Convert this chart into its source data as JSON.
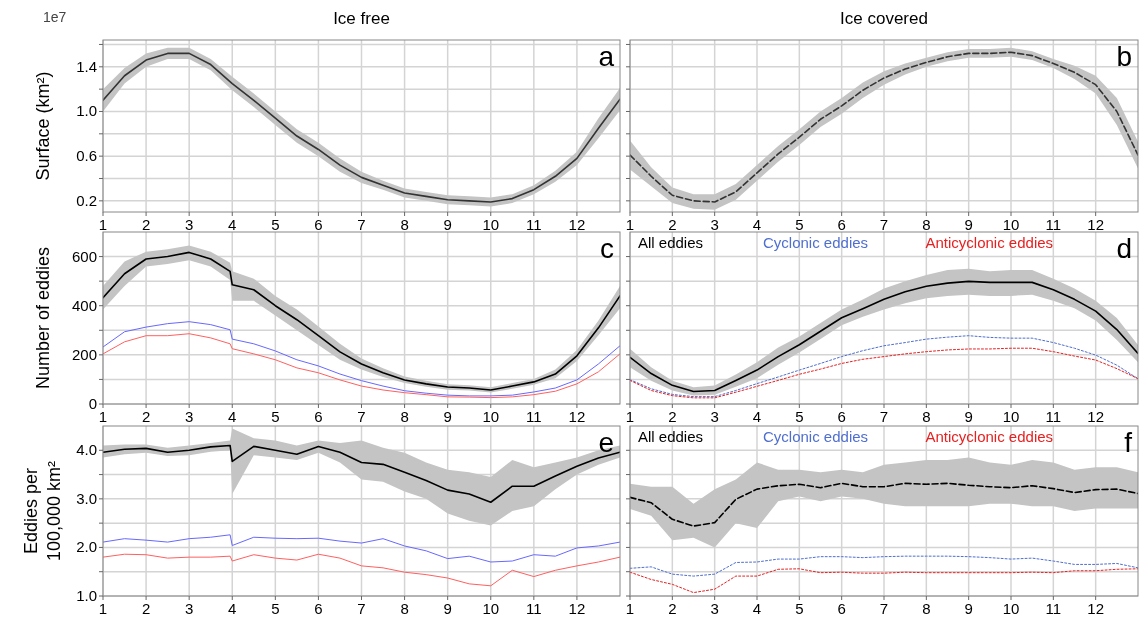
{
  "chart_data": [
    {
      "type": "line",
      "title": "Ice free",
      "ylabel": "Surface (km²)",
      "annotations": [
        "a",
        "1e7"
      ],
      "grid": true,
      "legend": false,
      "x": [
        1,
        1.5,
        2,
        2.5,
        3,
        3.5,
        4,
        4.5,
        5,
        5.5,
        6,
        6.5,
        7,
        7.5,
        8,
        8.5,
        9,
        9.5,
        10,
        10.5,
        11,
        11.5,
        12,
        12.5,
        13
      ],
      "xlim": [
        1,
        13
      ],
      "xticks": [
        1,
        2,
        3,
        4,
        5,
        6,
        7,
        8,
        9,
        10,
        11,
        12
      ],
      "ylim": [
        0.1,
        1.64
      ],
      "yticks": [
        0.2,
        {
          "value": 0.4,
          "label": null
        },
        0.6,
        {
          "value": 0.8,
          "label": null
        },
        {
          "value": 1,
          "label": "1.0"
        },
        {
          "value": 1.2,
          "label": null
        },
        1.4,
        {
          "value": 1.6,
          "label": null
        }
      ],
      "series": [
        {
          "color": "#333333",
          "line_style": "solid",
          "values": [
            1.1,
            1.32,
            1.46,
            1.52,
            1.52,
            1.42,
            1.25,
            1.1,
            0.94,
            0.78,
            0.66,
            0.52,
            0.41,
            0.34,
            0.27,
            0.24,
            0.21,
            0.2,
            0.19,
            0.22,
            0.3,
            0.42,
            0.58,
            0.85,
            1.11
          ],
          "lower": [
            1.0,
            1.25,
            1.4,
            1.47,
            1.47,
            1.37,
            1.19,
            1.04,
            0.88,
            0.72,
            0.6,
            0.46,
            0.36,
            0.3,
            0.23,
            0.2,
            0.17,
            0.16,
            0.15,
            0.18,
            0.26,
            0.37,
            0.52,
            0.76,
            1.01
          ],
          "upper": [
            1.2,
            1.39,
            1.52,
            1.57,
            1.57,
            1.47,
            1.31,
            1.16,
            1.0,
            0.84,
            0.72,
            0.58,
            0.46,
            0.38,
            0.31,
            0.28,
            0.25,
            0.24,
            0.23,
            0.26,
            0.34,
            0.47,
            0.64,
            0.94,
            1.21
          ]
        }
      ]
    },
    {
      "type": "line",
      "title": "Ice covered",
      "annotations": [
        "b"
      ],
      "grid": true,
      "legend": false,
      "tick_labels": "x",
      "x": [
        1,
        1.5,
        2,
        2.5,
        3,
        3.5,
        4,
        4.5,
        5,
        5.5,
        6,
        6.5,
        7,
        7.5,
        8,
        8.5,
        9,
        9.5,
        10,
        10.5,
        11,
        11.5,
        12,
        12.5,
        13
      ],
      "xlim": [
        1,
        13
      ],
      "xticks": [
        1,
        2,
        3,
        4,
        5,
        6,
        7,
        8,
        9,
        10,
        11,
        12
      ],
      "ylim": [
        0.1,
        1.64
      ],
      "yticks": [
        {
          "value": 0.2,
          "label": null
        },
        {
          "value": 0.4,
          "label": null
        },
        {
          "value": 0.6,
          "label": null
        },
        {
          "value": 0.8,
          "label": null
        },
        {
          "value": 1,
          "label": null
        },
        {
          "value": 1.2,
          "label": null
        },
        {
          "value": 1.4,
          "label": null
        },
        {
          "value": 1.6,
          "label": null
        }
      ],
      "series": [
        {
          "color": "#333333",
          "line_style": "dashed",
          "values": [
            0.61,
            0.42,
            0.25,
            0.2,
            0.19,
            0.28,
            0.45,
            0.62,
            0.77,
            0.93,
            1.05,
            1.19,
            1.3,
            1.38,
            1.44,
            1.49,
            1.52,
            1.52,
            1.53,
            1.5,
            1.43,
            1.35,
            1.24,
            1.0,
            0.61
          ],
          "lower": [
            0.48,
            0.33,
            0.18,
            0.13,
            0.12,
            0.21,
            0.38,
            0.55,
            0.7,
            0.86,
            0.98,
            1.12,
            1.24,
            1.33,
            1.4,
            1.45,
            1.48,
            1.48,
            1.49,
            1.46,
            1.39,
            1.29,
            1.16,
            0.88,
            0.49
          ],
          "upper": [
            0.74,
            0.5,
            0.32,
            0.26,
            0.26,
            0.35,
            0.52,
            0.69,
            0.84,
            1.0,
            1.12,
            1.26,
            1.36,
            1.43,
            1.48,
            1.53,
            1.56,
            1.56,
            1.57,
            1.54,
            1.47,
            1.41,
            1.32,
            1.12,
            0.73
          ]
        }
      ]
    },
    {
      "type": "line",
      "ylabel": "Number of eddies",
      "annotations": [
        "c"
      ],
      "grid": true,
      "legend": false,
      "x": [
        1,
        1.5,
        2,
        2.5,
        3,
        3.5,
        3.95,
        4,
        4.5,
        5,
        5.5,
        6,
        6.5,
        7,
        7.5,
        8,
        8.5,
        9,
        9.5,
        10,
        10.5,
        11,
        11.5,
        12,
        12.5,
        13
      ],
      "xlim": [
        1,
        13
      ],
      "xticks": [
        1,
        2,
        3,
        4,
        5,
        6,
        7,
        8,
        9,
        10,
        11,
        12
      ],
      "ylim": [
        0,
        700
      ],
      "yticks": [
        0,
        {
          "value": 100,
          "label": null
        },
        200,
        {
          "value": 300,
          "label": null
        },
        400,
        {
          "value": 500,
          "label": null
        },
        600
      ],
      "series": [
        {
          "color": "#000000",
          "line_style": "solid",
          "values": [
            433,
            530,
            590,
            600,
            617,
            590,
            540,
            485,
            465,
            400,
            343,
            278,
            212,
            163,
            127,
            98,
            82,
            69,
            65,
            57,
            73,
            90,
            122,
            196,
            310,
            440
          ],
          "lower": [
            385,
            480,
            560,
            570,
            585,
            560,
            505,
            420,
            420,
            360,
            300,
            240,
            180,
            140,
            110,
            85,
            70,
            58,
            55,
            47,
            62,
            78,
            105,
            175,
            280,
            390
          ],
          "upper": [
            480,
            580,
            620,
            630,
            645,
            620,
            575,
            540,
            510,
            440,
            385,
            315,
            245,
            185,
            145,
            112,
            95,
            80,
            76,
            68,
            85,
            102,
            140,
            220,
            340,
            480
          ]
        },
        {
          "color": "#6868ff",
          "line_style": "solid",
          "values": [
            232,
            294,
            313,
            327,
            335,
            323,
            302,
            264,
            245,
            216,
            180,
            155,
            122,
            95,
            73,
            54,
            44,
            36,
            33,
            33,
            36,
            49,
            65,
            98,
            163,
            237
          ]
        },
        {
          "color": "#ff6060",
          "line_style": "solid",
          "values": [
            204,
            253,
            278,
            278,
            286,
            269,
            245,
            225,
            204,
            180,
            147,
            127,
            98,
            73,
            57,
            46,
            38,
            29,
            28,
            26,
            29,
            38,
            52,
            82,
            131,
            204
          ]
        }
      ]
    },
    {
      "type": "line",
      "annotations": [
        "d"
      ],
      "grid": true,
      "legend": "top left",
      "tick_labels": "x",
      "x": [
        1,
        1.5,
        2,
        2.5,
        3,
        3.5,
        4,
        4.5,
        5,
        5.5,
        6,
        6.5,
        7,
        7.5,
        8,
        8.5,
        9,
        9.5,
        10,
        10.5,
        11,
        11.5,
        12,
        12.5,
        13
      ],
      "xlim": [
        1,
        13
      ],
      "xticks": [
        1,
        2,
        3,
        4,
        5,
        6,
        7,
        8,
        9,
        10,
        11,
        12
      ],
      "ylim": [
        0,
        700
      ],
      "yticks": [
        {
          "value": 0,
          "label": null
        },
        {
          "value": 100,
          "label": null
        },
        {
          "value": 200,
          "label": null
        },
        {
          "value": 300,
          "label": null
        },
        {
          "value": 400,
          "label": null
        },
        {
          "value": 500,
          "label": null
        },
        {
          "value": 600,
          "label": null
        }
      ],
      "series": [
        {
          "name": "All eddies",
          "color": "#000000",
          "line_style": "solid",
          "values": [
            190,
            124,
            76,
            51,
            55,
            96,
            138,
            193,
            241,
            296,
            351,
            388,
            426,
            457,
            479,
            492,
            499,
            495,
            495,
            495,
            465,
            426,
            378,
            303,
            206
          ],
          "lower": [
            150,
            95,
            55,
            35,
            38,
            70,
            105,
            160,
            210,
            265,
            320,
            355,
            385,
            410,
            430,
            440,
            445,
            440,
            440,
            445,
            420,
            390,
            340,
            260,
            170
          ],
          "upper": [
            225,
            150,
            95,
            68,
            75,
            120,
            170,
            230,
            275,
            330,
            385,
            425,
            470,
            500,
            525,
            545,
            550,
            540,
            545,
            545,
            510,
            470,
            420,
            350,
            240
          ]
        },
        {
          "name": "Cyclonic eddies",
          "color": "#4f6fd0",
          "line_style": "dotted",
          "values": [
            99,
            62,
            39,
            30,
            30,
            55,
            83,
            110,
            138,
            165,
            193,
            217,
            237,
            250,
            264,
            272,
            278,
            271,
            268,
            268,
            250,
            227,
            199,
            158,
            103
          ]
        },
        {
          "name": "Anticyclonic eddies",
          "color": "#e82020",
          "line_style": "dotted",
          "values": [
            96,
            55,
            34,
            25,
            25,
            48,
            72,
            96,
            121,
            142,
            165,
            182,
            193,
            204,
            213,
            220,
            224,
            224,
            227,
            227,
            213,
            195,
            179,
            144,
            103
          ]
        }
      ]
    },
    {
      "type": "line",
      "ylabel": "Eddies per 100,000 km²",
      "annotations": [
        "e"
      ],
      "grid": true,
      "legend": false,
      "x": [
        1,
        1.5,
        2,
        2.5,
        3,
        3.5,
        3.95,
        4,
        4.5,
        5,
        5.5,
        6,
        6.5,
        7,
        7.5,
        8,
        8.5,
        9,
        9.5,
        10,
        10.5,
        11,
        11.5,
        12,
        12.5,
        13
      ],
      "xlim": [
        1,
        13
      ],
      "xticks": [
        1,
        2,
        3,
        4,
        5,
        6,
        7,
        8,
        9,
        10,
        11,
        12
      ],
      "ylim": [
        1,
        4.5
      ],
      "yticks": [
        {
          "value": 1,
          "label": "1.0"
        },
        {
          "value": 1.5,
          "label": null
        },
        {
          "value": 2,
          "label": "2.0"
        },
        {
          "value": 2.5,
          "label": null
        },
        {
          "value": 3,
          "label": "3.0"
        },
        {
          "value": 3.5,
          "label": null
        },
        {
          "value": 4,
          "label": "4.0"
        }
      ],
      "series": [
        {
          "color": "#000000",
          "line_style": "solid",
          "values": [
            3.96,
            4.02,
            4.04,
            3.96,
            4.0,
            4.07,
            4.1,
            3.77,
            4.08,
            4.0,
            3.92,
            4.08,
            3.96,
            3.75,
            3.71,
            3.55,
            3.38,
            3.18,
            3.1,
            2.93,
            3.26,
            3.26,
            3.47,
            3.67,
            3.84,
            3.96
          ],
          "lower": [
            3.85,
            3.92,
            3.95,
            3.88,
            3.9,
            3.97,
            4.0,
            3.1,
            3.9,
            3.85,
            3.8,
            3.95,
            3.75,
            3.4,
            3.35,
            3.15,
            3.0,
            2.7,
            2.55,
            2.45,
            2.75,
            2.85,
            3.2,
            3.5,
            3.7,
            3.85
          ],
          "upper": [
            4.1,
            4.12,
            4.12,
            4.05,
            4.1,
            4.15,
            4.2,
            4.45,
            4.25,
            4.2,
            4.1,
            4.2,
            4.15,
            4.2,
            4.05,
            3.95,
            3.75,
            3.6,
            3.55,
            3.45,
            3.8,
            3.65,
            3.75,
            3.85,
            4.0,
            4.1
          ]
        },
        {
          "color": "#6868ff",
          "line_style": "solid",
          "values": [
            2.11,
            2.18,
            2.15,
            2.11,
            2.18,
            2.21,
            2.26,
            2.04,
            2.21,
            2.19,
            2.18,
            2.19,
            2.13,
            2.09,
            2.18,
            2.03,
            1.93,
            1.77,
            1.82,
            1.7,
            1.72,
            1.85,
            1.82,
            1.99,
            2.03,
            2.11
          ]
        },
        {
          "color": "#ff6060",
          "line_style": "solid",
          "values": [
            1.8,
            1.86,
            1.85,
            1.78,
            1.8,
            1.8,
            1.82,
            1.72,
            1.85,
            1.78,
            1.74,
            1.86,
            1.78,
            1.62,
            1.58,
            1.49,
            1.44,
            1.37,
            1.25,
            1.21,
            1.53,
            1.4,
            1.53,
            1.62,
            1.7,
            1.8
          ]
        }
      ]
    },
    {
      "type": "line",
      "annotations": [
        "f"
      ],
      "grid": true,
      "legend": "top left",
      "tick_labels": "x",
      "x": [
        1,
        1.5,
        2,
        2.5,
        3,
        3.5,
        4,
        4.5,
        5,
        5.5,
        6,
        6.5,
        7,
        7.5,
        8,
        8.5,
        9,
        9.5,
        10,
        10.5,
        11,
        11.5,
        12,
        12.5,
        13
      ],
      "xlim": [
        1,
        13
      ],
      "xticks": [
        1,
        2,
        3,
        4,
        5,
        6,
        7,
        8,
        9,
        10,
        11,
        12
      ],
      "ylim": [
        1,
        4.5
      ],
      "yticks": [
        {
          "value": 1,
          "label": null
        },
        {
          "value": 1.5,
          "label": null
        },
        {
          "value": 2,
          "label": null
        },
        {
          "value": 2.5,
          "label": null
        },
        {
          "value": 3,
          "label": null
        },
        {
          "value": 3.5,
          "label": null
        },
        {
          "value": 4,
          "label": null
        }
      ],
      "series": [
        {
          "name": "All eddies",
          "color": "#000000",
          "line_style": "dashed",
          "values": [
            3.03,
            2.92,
            2.58,
            2.44,
            2.51,
            2.99,
            3.2,
            3.27,
            3.3,
            3.23,
            3.32,
            3.25,
            3.25,
            3.32,
            3.3,
            3.32,
            3.28,
            3.25,
            3.23,
            3.27,
            3.21,
            3.13,
            3.19,
            3.2,
            3.11
          ],
          "lower": [
            2.79,
            2.65,
            2.15,
            2.2,
            2.0,
            2.5,
            2.4,
            2.95,
            3.05,
            2.95,
            3.05,
            3.0,
            2.9,
            2.85,
            2.85,
            2.85,
            2.85,
            2.9,
            2.9,
            2.85,
            2.85,
            2.75,
            2.8,
            2.8,
            2.8
          ],
          "upper": [
            3.31,
            3.25,
            3.25,
            2.9,
            3.2,
            3.4,
            3.75,
            3.6,
            3.6,
            3.55,
            3.6,
            3.55,
            3.7,
            3.75,
            3.8,
            3.8,
            3.85,
            3.75,
            3.7,
            3.8,
            3.75,
            3.6,
            3.65,
            3.65,
            3.55
          ]
        },
        {
          "name": "Cyclonic eddies",
          "color": "#4f6fd0",
          "line_style": "dotted",
          "values": [
            1.57,
            1.6,
            1.45,
            1.41,
            1.45,
            1.69,
            1.7,
            1.76,
            1.76,
            1.81,
            1.81,
            1.79,
            1.81,
            1.82,
            1.82,
            1.82,
            1.81,
            1.79,
            1.76,
            1.78,
            1.72,
            1.65,
            1.65,
            1.67,
            1.58
          ]
        },
        {
          "name": "Anticyclonic eddies",
          "color": "#e82020",
          "line_style": "dotted",
          "values": [
            1.49,
            1.34,
            1.24,
            1.07,
            1.14,
            1.41,
            1.41,
            1.55,
            1.56,
            1.48,
            1.49,
            1.47,
            1.47,
            1.49,
            1.48,
            1.48,
            1.48,
            1.48,
            1.48,
            1.49,
            1.48,
            1.52,
            1.52,
            1.55,
            1.56
          ]
        }
      ]
    }
  ]
}
